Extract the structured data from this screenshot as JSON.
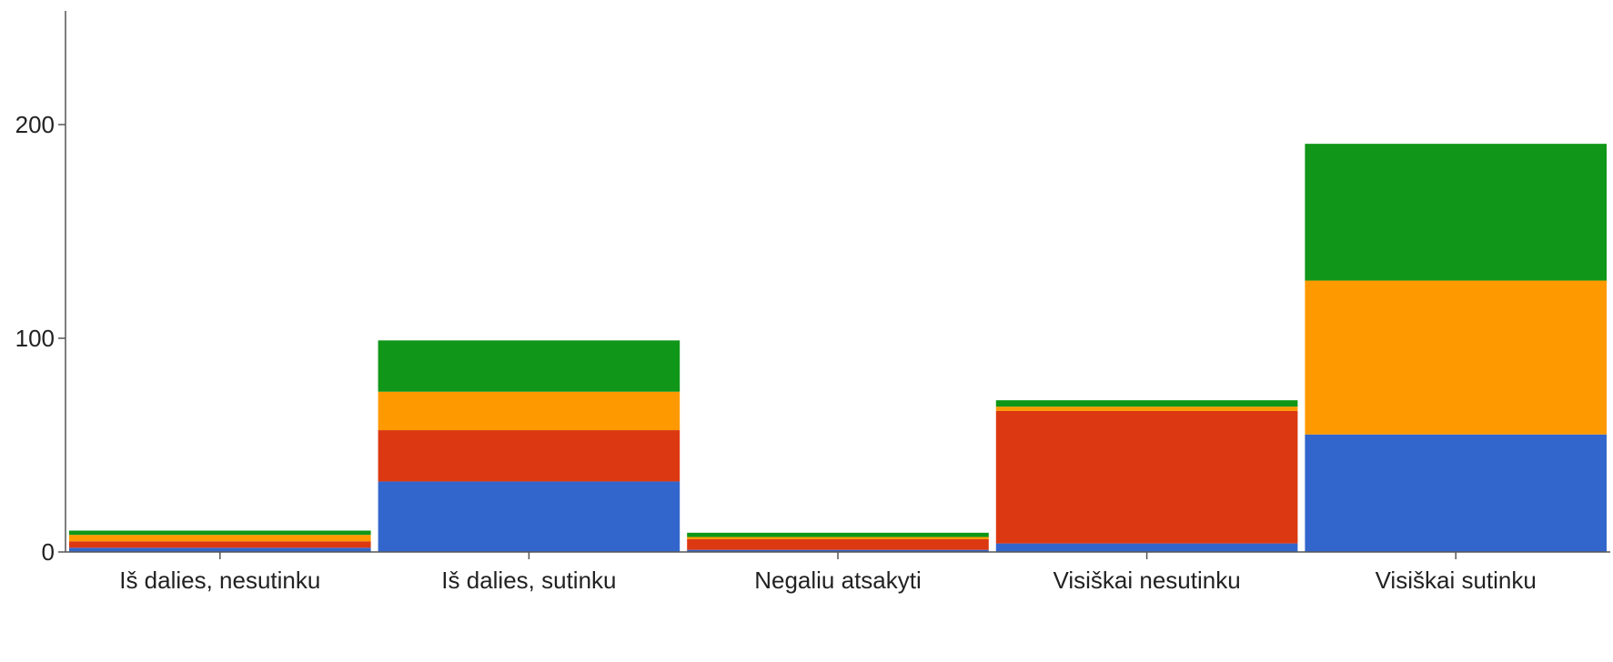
{
  "chart_data": {
    "type": "bar",
    "stacked": true,
    "categories": [
      "Iš dalies, nesutinku",
      "Iš dalies, sutinku",
      "Negaliu atsakyti",
      "Visiškai nesutinku",
      "Visiškai sutinku"
    ],
    "series": [
      {
        "color": "#3366cc",
        "values": [
          2,
          33,
          1,
          4,
          55
        ]
      },
      {
        "color": "#dc3912",
        "values": [
          3,
          24,
          5,
          62,
          0
        ]
      },
      {
        "color": "#ff9900",
        "values": [
          3,
          18,
          1,
          2,
          72
        ]
      },
      {
        "color": "#109618",
        "values": [
          2,
          24,
          2,
          3,
          64
        ]
      }
    ],
    "yticks": [
      0,
      100,
      200
    ],
    "ylim": [
      0,
      250
    ],
    "grid": false,
    "legend": "top (cropped)"
  }
}
